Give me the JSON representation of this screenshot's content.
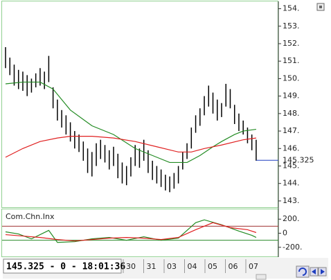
{
  "chart_data": [
    {
      "type": "ohlc",
      "high": [
        151.8,
        151.2,
        150.8,
        150.5,
        150.4,
        150.2,
        150.0,
        150.3,
        150.6,
        150.4,
        151.3,
        149.5,
        148.8,
        148.2,
        147.9,
        147.5,
        147.0,
        146.8,
        146.4,
        146.0,
        145.8,
        146.3,
        146.5,
        146.2,
        145.9,
        146.1,
        145.7,
        145.2,
        145.0,
        145.5,
        146.2,
        146.0,
        146.5,
        145.9,
        145.3,
        145.0,
        144.8,
        144.5,
        144.4,
        144.6,
        145.0,
        145.8,
        146.3,
        147.2,
        147.9,
        148.3,
        149.0,
        149.6,
        149.2,
        148.8,
        148.6,
        149.7,
        149.4,
        148.5,
        148.0,
        147.6,
        147.2,
        146.8,
        146.5
      ],
      "low": [
        150.6,
        150.2,
        149.6,
        149.4,
        149.3,
        149.0,
        149.2,
        149.5,
        149.6,
        149.4,
        149.8,
        148.3,
        147.6,
        147.2,
        146.8,
        146.4,
        146.0,
        145.8,
        145.3,
        144.6,
        144.4,
        145.0,
        145.4,
        145.2,
        144.8,
        145.0,
        144.3,
        144.0,
        143.9,
        144.4,
        145.0,
        144.9,
        145.3,
        144.6,
        144.2,
        144.0,
        143.8,
        143.6,
        143.5,
        143.7,
        144.0,
        144.8,
        145.4,
        146.0,
        146.9,
        147.3,
        147.9,
        148.4,
        148.0,
        147.6,
        147.8,
        148.4,
        148.3,
        147.4,
        147.0,
        146.8,
        146.3,
        145.9,
        145.3
      ],
      "bar_color": "#000000",
      "overlays": [
        {
          "color": "#228b22",
          "x": [
            0,
            4,
            8,
            11,
            15,
            20,
            25,
            30,
            35,
            38,
            42,
            45,
            48,
            50,
            53,
            55,
            58
          ],
          "values": [
            149.7,
            149.8,
            149.8,
            149.4,
            148.2,
            147.3,
            146.8,
            146.0,
            145.5,
            145.2,
            145.2,
            145.6,
            146.1,
            146.4,
            146.8,
            147.0,
            147.1
          ]
        },
        {
          "color": "#e02020",
          "x": [
            0,
            4,
            8,
            12,
            15,
            20,
            25,
            30,
            35,
            40,
            43,
            46,
            50,
            55,
            58
          ],
          "values": [
            145.5,
            146.0,
            146.4,
            146.6,
            146.7,
            146.7,
            146.6,
            146.4,
            146.1,
            145.8,
            145.8,
            146.0,
            146.2,
            146.5,
            146.6
          ]
        }
      ],
      "last_price": 145.325,
      "last_price_label": "145.325",
      "last_color": "#1f3fbf",
      "ylim": [
        142.6,
        154.3
      ],
      "yticks": [
        {
          "value": 154,
          "label": "154."
        },
        {
          "value": 153,
          "label": "153."
        },
        {
          "value": 152,
          "label": "152."
        },
        {
          "value": 151,
          "label": "151."
        },
        {
          "value": 150,
          "label": "150."
        },
        {
          "value": 149,
          "label": "149."
        },
        {
          "value": 148,
          "label": "148."
        },
        {
          "value": 147,
          "label": "147."
        },
        {
          "value": 146,
          "label": "146."
        },
        {
          "value": 145,
          "label": "145."
        },
        {
          "value": 144,
          "label": "144."
        },
        {
          "value": 143,
          "label": "143."
        }
      ]
    },
    {
      "type": "line",
      "title": "Com.Chn.Inx",
      "series": [
        {
          "color": "#228b22",
          "x": [
            0,
            3,
            6,
            10,
            12,
            16,
            20,
            24,
            28,
            32,
            36,
            40,
            44,
            46,
            50,
            54,
            57,
            58
          ],
          "values": [
            20,
            -10,
            -80,
            40,
            -130,
            -120,
            -80,
            -60,
            -100,
            -50,
            -100,
            -70,
            150,
            190,
            120,
            30,
            -30,
            -60
          ]
        },
        {
          "color": "#e02020",
          "x": [
            0,
            4,
            8,
            12,
            16,
            20,
            24,
            28,
            32,
            36,
            40,
            44,
            48,
            52,
            56,
            58
          ],
          "values": [
            -20,
            -40,
            -60,
            -90,
            -110,
            -90,
            -70,
            -60,
            -70,
            -90,
            -60,
            50,
            150,
            80,
            50,
            10
          ]
        }
      ],
      "levels": [
        {
          "value": 100,
          "color": "#a03030"
        },
        {
          "value": -100,
          "color": "#2a8a2a"
        }
      ],
      "ylim": [
        -330,
        340
      ],
      "yticks": [
        {
          "value": 200,
          "label": "200."
        },
        0,
        {
          "value": -200,
          "label": "-200."
        }
      ]
    }
  ],
  "status": "145.325 - 0 - 18:01:36",
  "date_labels": [
    "30",
    "31",
    "03",
    "04",
    "05",
    "06",
    "07"
  ]
}
